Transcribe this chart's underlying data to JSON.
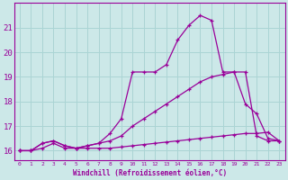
{
  "xlabel": "Windchill (Refroidissement éolien,°C)",
  "bg_color": "#cce8e8",
  "line_color": "#990099",
  "grid_color": "#aad4d4",
  "xlim": [
    -0.5,
    23.5
  ],
  "ylim": [
    15.6,
    22.0
  ],
  "yticks": [
    16,
    17,
    18,
    19,
    20,
    21
  ],
  "xticks": [
    0,
    1,
    2,
    3,
    4,
    5,
    6,
    7,
    8,
    9,
    10,
    11,
    12,
    13,
    14,
    15,
    16,
    17,
    18,
    19,
    20,
    21,
    22,
    23
  ],
  "series1_x": [
    0,
    1,
    2,
    3,
    4,
    5,
    6,
    7,
    8,
    9,
    10,
    11,
    12,
    13,
    14,
    15,
    16,
    17,
    18,
    19,
    20,
    21,
    22,
    23
  ],
  "series1_y": [
    16.0,
    16.0,
    16.1,
    16.3,
    16.1,
    16.1,
    16.1,
    16.1,
    16.1,
    16.15,
    16.2,
    16.25,
    16.3,
    16.35,
    16.4,
    16.45,
    16.5,
    16.55,
    16.6,
    16.65,
    16.7,
    16.7,
    16.75,
    16.4
  ],
  "series2_x": [
    0,
    1,
    2,
    3,
    4,
    5,
    6,
    7,
    8,
    9,
    10,
    11,
    12,
    13,
    14,
    15,
    16,
    17,
    18,
    19,
    20,
    21,
    22,
    23
  ],
  "series2_y": [
    16.0,
    16.0,
    16.3,
    16.4,
    16.2,
    16.1,
    16.2,
    16.3,
    16.4,
    16.6,
    17.0,
    17.3,
    17.6,
    17.9,
    18.2,
    18.5,
    18.8,
    19.0,
    19.1,
    19.2,
    17.9,
    17.5,
    16.5,
    16.4
  ],
  "series3_x": [
    0,
    1,
    2,
    3,
    4,
    5,
    6,
    7,
    8,
    9,
    10,
    11,
    12,
    13,
    14,
    15,
    16,
    17,
    18,
    19,
    20,
    21,
    22,
    23
  ],
  "series3_y": [
    16.0,
    16.0,
    16.3,
    16.4,
    16.2,
    16.1,
    16.2,
    16.3,
    16.7,
    17.3,
    19.2,
    19.2,
    19.2,
    19.5,
    20.5,
    21.1,
    21.5,
    21.3,
    19.2,
    19.2,
    19.2,
    16.6,
    16.4,
    16.4
  ]
}
